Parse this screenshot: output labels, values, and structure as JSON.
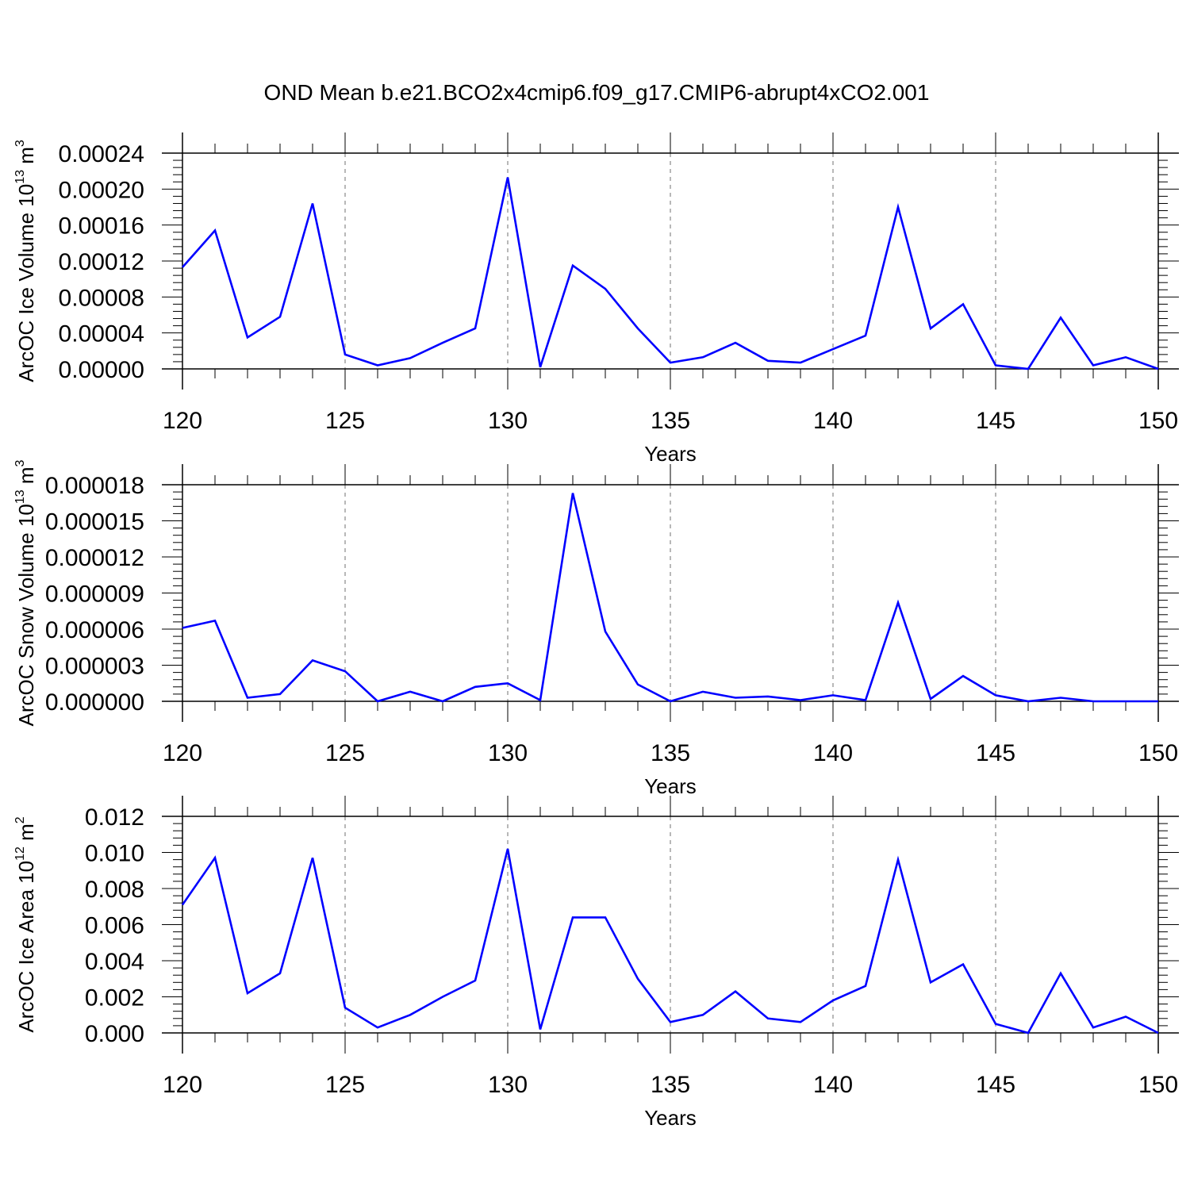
{
  "title": "OND Mean b.e21.BCO2x4cmip6.f09_g17.CMIP6-abrupt4xCO2.001",
  "line_color": "#0000ff",
  "chart_data": [
    {
      "type": "line",
      "xlabel": "Years",
      "ylabel": {
        "main": "ArcOC Ice Volume 10",
        "exp": "13",
        "unit": " m",
        "unit_exp": "3"
      },
      "xlim": [
        120,
        150
      ],
      "ylim": [
        0,
        0.00024
      ],
      "xticks": [
        120,
        125,
        130,
        135,
        140,
        145,
        150
      ],
      "yticks": [
        0,
        4e-05,
        8e-05,
        0.00012,
        0.00016,
        0.0002,
        0.00024
      ],
      "ytick_labels": [
        "0.00000",
        "0.00004",
        "0.00008",
        "0.00012",
        "0.00016",
        "0.00020",
        "0.00024"
      ],
      "grid_x": [
        125,
        130,
        135,
        140,
        145
      ],
      "x": [
        120,
        121,
        122,
        123,
        124,
        125,
        126,
        127,
        128,
        129,
        130,
        131,
        132,
        133,
        134,
        135,
        136,
        137,
        138,
        139,
        140,
        141,
        142,
        143,
        144,
        145,
        146,
        147,
        148,
        149,
        150
      ],
      "values": [
        0.000113,
        0.000154,
        3.5e-05,
        5.8e-05,
        0.000184,
        1.6e-05,
        4e-06,
        1.2e-05,
        2.9e-05,
        4.5e-05,
        0.000213,
        2e-06,
        0.000115,
        8.9e-05,
        4.5e-05,
        7e-06,
        1.3e-05,
        2.9e-05,
        9e-06,
        7e-06,
        2.2e-05,
        3.7e-05,
        0.00018,
        4.5e-05,
        7.2e-05,
        4e-06,
        0.0,
        5.7e-05,
        4e-06,
        1.3e-05,
        0.0
      ]
    },
    {
      "type": "line",
      "xlabel": "Years",
      "ylabel": {
        "main": "ArcOC Snow Volume 10",
        "exp": "13",
        "unit": " m",
        "unit_exp": "3"
      },
      "xlim": [
        120,
        150
      ],
      "ylim": [
        0,
        1.8e-05
      ],
      "xticks": [
        120,
        125,
        130,
        135,
        140,
        145,
        150
      ],
      "yticks": [
        0,
        3e-06,
        6e-06,
        9e-06,
        1.2e-05,
        1.5e-05,
        1.8e-05
      ],
      "ytick_labels": [
        "0.000000",
        "0.000003",
        "0.000006",
        "0.000009",
        "0.000012",
        "0.000015",
        "0.000018"
      ],
      "grid_x": [
        125,
        130,
        135,
        140,
        145
      ],
      "x": [
        120,
        121,
        122,
        123,
        124,
        125,
        126,
        127,
        128,
        129,
        130,
        131,
        132,
        133,
        134,
        135,
        136,
        137,
        138,
        139,
        140,
        141,
        142,
        143,
        144,
        145,
        146,
        147,
        148,
        149,
        150
      ],
      "values": [
        6.1e-06,
        6.7e-06,
        3e-07,
        6e-07,
        3.4e-06,
        2.5e-06,
        0.0,
        8e-07,
        0.0,
        1.2e-06,
        1.5e-06,
        1e-07,
        1.73e-05,
        5.8e-06,
        1.4e-06,
        0.0,
        8e-07,
        3e-07,
        4e-07,
        1e-07,
        5e-07,
        1e-07,
        8.2e-06,
        2e-07,
        2.1e-06,
        5e-07,
        0.0,
        3e-07,
        0.0,
        0.0,
        0.0
      ]
    },
    {
      "type": "line",
      "xlabel": "Years",
      "ylabel": {
        "main": "ArcOC Ice Area 10",
        "exp": "12",
        "unit": " m",
        "unit_exp": "2"
      },
      "xlim": [
        120,
        150
      ],
      "ylim": [
        0,
        0.012
      ],
      "xticks": [
        120,
        125,
        130,
        135,
        140,
        145,
        150
      ],
      "yticks": [
        0,
        0.002,
        0.004,
        0.006,
        0.008,
        0.01,
        0.012
      ],
      "ytick_labels": [
        "0.000",
        "0.002",
        "0.004",
        "0.006",
        "0.008",
        "0.010",
        "0.012"
      ],
      "grid_x": [
        125,
        130,
        135,
        140,
        145
      ],
      "x": [
        120,
        121,
        122,
        123,
        124,
        125,
        126,
        127,
        128,
        129,
        130,
        131,
        132,
        133,
        134,
        135,
        136,
        137,
        138,
        139,
        140,
        141,
        142,
        143,
        144,
        145,
        146,
        147,
        148,
        149,
        150
      ],
      "values": [
        0.0071,
        0.0097,
        0.0022,
        0.0033,
        0.0097,
        0.0014,
        0.0003,
        0.001,
        0.002,
        0.0029,
        0.0102,
        0.0002,
        0.0064,
        0.0064,
        0.003,
        0.0006,
        0.001,
        0.0023,
        0.0008,
        0.0006,
        0.0018,
        0.0026,
        0.0096,
        0.0028,
        0.0038,
        0.0005,
        0.0,
        0.0033,
        0.0003,
        0.0009,
        0.0
      ]
    }
  ]
}
